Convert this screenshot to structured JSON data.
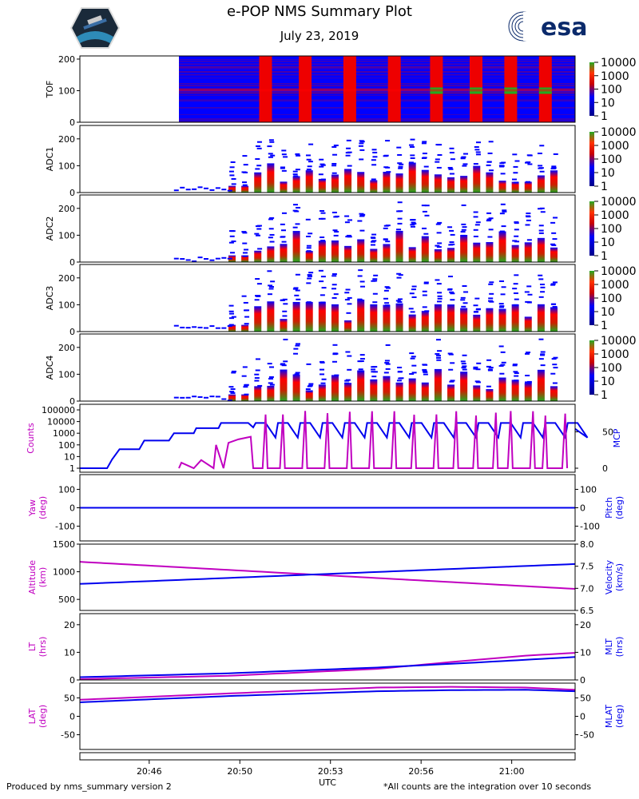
{
  "header": {
    "title": "e-POP NMS Summary Plot",
    "date": "July 23, 2019",
    "esa_logo_text": "esa"
  },
  "footer": {
    "left": "Produced by nms_summary version 2",
    "right": "*All counts are the integration over 10 seconds"
  },
  "colors": {
    "magenta": "#c000c0",
    "blue": "#0000ee",
    "spec_blue": "#0000ff",
    "spec_red": "#ee0000",
    "spec_green": "#22aa22"
  },
  "chart_data": [
    {
      "type": "heatmap",
      "name": "TOF",
      "ylabel": "TOF",
      "yticks": [
        "0",
        "100",
        "200"
      ],
      "ylim": [
        0,
        210
      ],
      "colorbar": [
        "1",
        "10",
        "100",
        "1000",
        "10000"
      ]
    },
    {
      "type": "heatmap",
      "name": "ADC1",
      "ylabel": "ADC1",
      "yticks": [
        "0",
        "100",
        "200"
      ],
      "ylim": [
        0,
        250
      ],
      "colorbar": [
        "1",
        "10",
        "100",
        "1000",
        "10000"
      ]
    },
    {
      "type": "heatmap",
      "name": "ADC2",
      "ylabel": "ADC2",
      "yticks": [
        "0",
        "100",
        "200"
      ],
      "ylim": [
        0,
        250
      ],
      "colorbar": [
        "1",
        "10",
        "100",
        "1000",
        "10000"
      ]
    },
    {
      "type": "heatmap",
      "name": "ADC3",
      "ylabel": "ADC3",
      "yticks": [
        "0",
        "100",
        "200"
      ],
      "ylim": [
        0,
        250
      ],
      "colorbar": [
        "1",
        "10",
        "100",
        "1000",
        "10000"
      ]
    },
    {
      "type": "heatmap",
      "name": "ADC4",
      "ylabel": "ADC4",
      "yticks": [
        "0",
        "100",
        "200"
      ],
      "ylim": [
        0,
        250
      ],
      "colorbar": [
        "1",
        "10",
        "100",
        "1000",
        "10000"
      ]
    },
    {
      "type": "line",
      "name": "counts",
      "ylabel_left": "Counts",
      "ylabel_right": "MCP",
      "yticks_left": [
        "1",
        "10",
        "100",
        "1000",
        "10000",
        "100000"
      ],
      "yticks_right": [
        "0",
        "50"
      ]
    },
    {
      "type": "line",
      "name": "attitude",
      "ylabel_left": [
        "Yaw",
        "(deg)"
      ],
      "ylabel_right": [
        "Pitch",
        "(deg)"
      ],
      "yticks_left": [
        "-100",
        "0",
        "100"
      ],
      "yticks_right": [
        "-100",
        "0",
        "100"
      ],
      "ylim": [
        -180,
        180
      ],
      "series": [
        {
          "name": "Yaw",
          "color": "#c000c0",
          "x": [
            0,
            1
          ],
          "y": [
            0,
            0
          ]
        },
        {
          "name": "Pitch",
          "color": "#0000ee",
          "x": [
            0,
            1
          ],
          "y": [
            0,
            0
          ]
        }
      ]
    },
    {
      "type": "line",
      "name": "altitude",
      "ylabel_left": [
        "Altitude",
        "(km)"
      ],
      "ylabel_right": [
        "Velocity",
        "(km/s)"
      ],
      "yticks_left": [
        "500",
        "1000",
        "1500"
      ],
      "yticks_right": [
        "6.5",
        "7.0",
        "7.5",
        "8.0"
      ],
      "ylim_left": [
        300,
        1500
      ],
      "ylim_right": [
        6.5,
        8.0
      ],
      "series": [
        {
          "name": "Altitude",
          "color": "#c000c0",
          "x": [
            0,
            1
          ],
          "y": [
            1180,
            690
          ]
        },
        {
          "name": "Velocity",
          "color": "#0000ee",
          "x": [
            0,
            1
          ],
          "y": [
            7.1,
            7.55
          ]
        }
      ]
    },
    {
      "type": "line",
      "name": "time",
      "ylabel_left": [
        "LT",
        "(hrs)"
      ],
      "ylabel_right": [
        "MLT",
        "(hrs)"
      ],
      "yticks_left": [
        "0",
        "10",
        "20"
      ],
      "yticks_right": [
        "0",
        "10",
        "20"
      ],
      "ylim": [
        0,
        24
      ],
      "series": [
        {
          "name": "LT",
          "color": "#c000c0",
          "x": [
            0,
            0.3,
            0.6,
            0.75,
            0.9,
            1
          ],
          "y": [
            0.3,
            1.5,
            4,
            6.5,
            8.8,
            9.8
          ]
        },
        {
          "name": "MLT",
          "color": "#0000ee",
          "x": [
            0,
            0.3,
            0.6,
            0.8,
            1
          ],
          "y": [
            1,
            2.4,
            4.5,
            6.3,
            8.3
          ]
        }
      ]
    },
    {
      "type": "line",
      "name": "latitude",
      "ylabel_left": [
        "LAT",
        "(deg)"
      ],
      "ylabel_right": [
        "MLAT",
        "(deg)"
      ],
      "yticks_left": [
        "-50",
        "0",
        "50"
      ],
      "yticks_right": [
        "-50",
        "0",
        "50"
      ],
      "ylim": [
        -90,
        90
      ],
      "series": [
        {
          "name": "LAT",
          "color": "#c000c0",
          "x": [
            0,
            0.3,
            0.6,
            0.75,
            0.9,
            1
          ],
          "y": [
            45,
            62,
            78,
            80,
            78,
            72
          ]
        },
        {
          "name": "MLAT",
          "color": "#0000ee",
          "x": [
            0,
            0.3,
            0.6,
            0.75,
            0.9,
            1
          ],
          "y": [
            38,
            55,
            68,
            71,
            72,
            68
          ]
        }
      ]
    }
  ],
  "xaxis": {
    "label": "UTC",
    "ticks": [
      "20:46",
      "20:50",
      "20:53",
      "20:56",
      "21:00"
    ],
    "tick_positions": [
      0.14,
      0.323,
      0.506,
      0.689,
      0.872
    ]
  }
}
